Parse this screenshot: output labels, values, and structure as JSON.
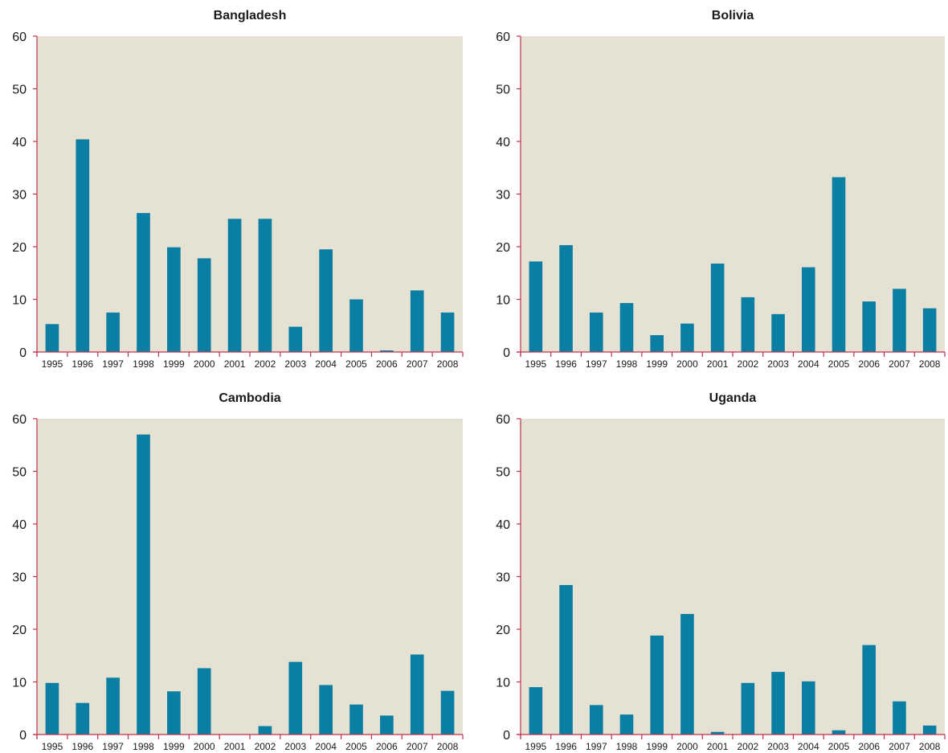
{
  "colors": {
    "plot_background": "#e6e2d3",
    "bar": "#0a7fa3",
    "axis": "#c0304a",
    "text": "#1a1a1a"
  },
  "chart_data": [
    {
      "type": "bar",
      "title": "Bangladesh",
      "categories": [
        "1995",
        "1996",
        "1997",
        "1998",
        "1999",
        "2000",
        "2001",
        "2002",
        "2003",
        "2004",
        "2005",
        "2006",
        "2007",
        "2008"
      ],
      "values": [
        5.3,
        40.4,
        7.5,
        26.4,
        19.9,
        17.8,
        25.3,
        25.3,
        4.8,
        19.5,
        10.0,
        0.3,
        11.7,
        7.5
      ],
      "ylim": [
        0,
        60
      ],
      "yticks": [
        0,
        10,
        20,
        30,
        40,
        50,
        60
      ],
      "grid": false
    },
    {
      "type": "bar",
      "title": "Bolivia",
      "categories": [
        "1995",
        "1996",
        "1997",
        "1998",
        "1999",
        "2000",
        "2001",
        "2002",
        "2003",
        "2004",
        "2005",
        "2006",
        "2007",
        "2008"
      ],
      "values": [
        17.2,
        20.3,
        7.5,
        9.3,
        3.2,
        5.4,
        16.8,
        10.4,
        7.2,
        16.1,
        33.2,
        9.6,
        12.0,
        8.3
      ],
      "ylim": [
        0,
        60
      ],
      "yticks": [
        0,
        10,
        20,
        30,
        40,
        50,
        60
      ],
      "grid": false
    },
    {
      "type": "bar",
      "title": "Cambodia",
      "categories": [
        "1995",
        "1996",
        "1997",
        "1998",
        "1999",
        "2000",
        "2001",
        "2002",
        "2003",
        "2004",
        "2005",
        "2006",
        "2007",
        "2008"
      ],
      "values": [
        9.8,
        6.0,
        10.8,
        57.0,
        8.2,
        12.6,
        0,
        1.6,
        13.8,
        9.4,
        5.7,
        3.6,
        15.2,
        8.3
      ],
      "ylim": [
        0,
        60
      ],
      "yticks": [
        0,
        10,
        20,
        30,
        40,
        50,
        60
      ],
      "grid": false
    },
    {
      "type": "bar",
      "title": "Uganda",
      "categories": [
        "1995",
        "1996",
        "1997",
        "1998",
        "1999",
        "2000",
        "2001",
        "2002",
        "2003",
        "2004",
        "2005",
        "2006",
        "2007",
        "2008"
      ],
      "values": [
        9.0,
        28.4,
        5.6,
        3.8,
        18.8,
        22.9,
        0.5,
        9.8,
        11.9,
        10.1,
        0.8,
        17.0,
        6.3,
        1.7
      ],
      "ylim": [
        0,
        60
      ],
      "yticks": [
        0,
        10,
        20,
        30,
        40,
        50,
        60
      ],
      "grid": false
    }
  ]
}
